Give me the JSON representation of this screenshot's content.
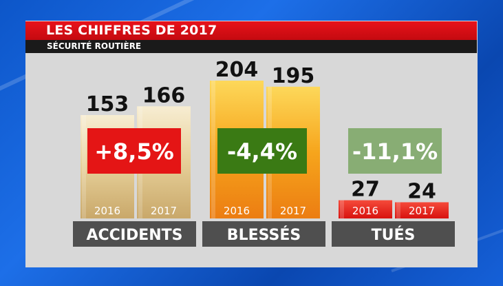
{
  "header": {
    "title": "LES CHIFFRES DE 2017",
    "subtitle": "SÉCURITÉ ROUTIÈRE"
  },
  "colors": {
    "title_bar": "#d80e15",
    "subtitle_bar": "#1a1a1a",
    "panel": "#d8d8d8",
    "category_box": "#4f4f4f",
    "accidents_bar": "#e3cc95",
    "blesses_bar": "#f5a31a",
    "tues_bar": "#e8221f",
    "badge_up": "#e41515",
    "badge_down": "#3a7a14",
    "badge_down_light": "#88ad74"
  },
  "chart_data": {
    "type": "bar",
    "title": "LES CHIFFRES DE 2017",
    "subtitle": "SÉCURITÉ ROUTIÈRE",
    "xlabel": "",
    "ylabel": "",
    "categories": [
      "ACCIDENTS",
      "BLESSÉS",
      "TUÉS"
    ],
    "series": [
      {
        "name": "2016",
        "values": [
          153,
          204,
          27
        ]
      },
      {
        "name": "2017",
        "values": [
          166,
          195,
          24
        ]
      }
    ],
    "value_labels": {
      "2016": [
        "153",
        "204",
        "27"
      ],
      "2017": [
        "166",
        "195",
        "24"
      ]
    },
    "changes": [
      "+8,5%",
      "-4,4%",
      "-11,1%"
    ],
    "ylim": [
      0,
      204
    ],
    "grid": false,
    "legend": "none"
  }
}
